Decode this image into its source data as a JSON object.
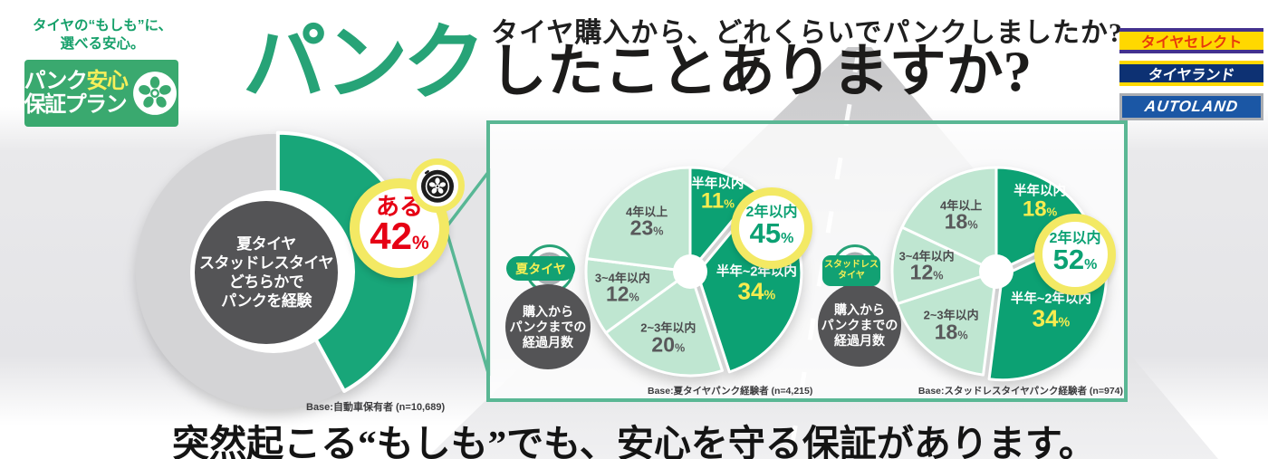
{
  "brand": {
    "tagline": [
      "タイヤの“もしも”に、",
      "選べる安心。"
    ],
    "logo": {
      "line1_a": "パンク",
      "line1_b": "安心",
      "line2": "保証プラン"
    }
  },
  "title": {
    "highlight": "パンク",
    "rest": "したことありますか?"
  },
  "retailers": [
    {
      "name": "タイヤセレクト"
    },
    {
      "name": "タイヤランド"
    },
    {
      "name": "AUTOLAND"
    }
  ],
  "panel": {
    "question": "タイヤ購入から、どれくらいでパンクしましたか?"
  },
  "experience": {
    "center_lines": [
      "夏タイヤ",
      "スタッドレスタイヤ",
      "どちらかで",
      "パンクを経験"
    ]
  },
  "pie_decorations": [
    {
      "tire_type_lines": [
        "夏タイヤ"
      ],
      "caption_lines": [
        "購入から",
        "パンクまでの",
        "経過月数"
      ]
    },
    {
      "tire_type_lines": [
        "スタッドレス",
        "タイヤ"
      ],
      "caption_lines": [
        "購入から",
        "パンクまでの",
        "経過月数"
      ]
    }
  ],
  "footer": {
    "message": "突然起こる“もしも”でも、安心を守る保証があります。"
  },
  "colors": {
    "brand_green": "#3aa96f",
    "pie_green_dark": "#0ca173",
    "pie_green_light": "#bfe6d1",
    "donut_green": "#18a679",
    "donut_gray": "#d4d4d6",
    "highlight_yellow": "#f3e964",
    "accent_red": "#e60014",
    "dark_circle_gray": "#545456"
  },
  "chart_data": [
    {
      "id": "puncture-experience-donut",
      "type": "donut",
      "question": "パンクしたことありますか?",
      "series": [
        {
          "label": "ある",
          "value": 42
        },
        {
          "label": "",
          "value": 58
        }
      ],
      "unit": "%",
      "center_note": "夏タイヤ スタッドレスタイヤ どちらかで パンクを経験",
      "base": "Base:自動車保有者 (n=10,689)"
    },
    {
      "id": "summer-tire-months-to-puncture",
      "type": "pie",
      "group": "夏タイヤ",
      "title": "タイヤ購入から、どれくらいでパンクしましたか?",
      "categories": [
        "半年以内",
        "半年~2年以内",
        "2~3年以内",
        "3~4年以内",
        "4年以上"
      ],
      "values": [
        11,
        34,
        20,
        12,
        23
      ],
      "unit": "%",
      "callout": {
        "label": "2年以内",
        "value": 45
      },
      "base": "Base:夏タイヤパンク経験者 (n=4,215)"
    },
    {
      "id": "studless-tire-months-to-puncture",
      "type": "pie",
      "group": "スタッドレスタイヤ",
      "title": "タイヤ購入から、どれくらいでパンクしましたか?",
      "categories": [
        "半年以内",
        "半年~2年以内",
        "2~3年以内",
        "3~4年以内",
        "4年以上"
      ],
      "values": [
        18,
        34,
        18,
        12,
        18
      ],
      "unit": "%",
      "callout": {
        "label": "2年以内",
        "value": 52
      },
      "base": "Base:スタッドレスタイヤパンク経験者 (n=974)"
    }
  ]
}
